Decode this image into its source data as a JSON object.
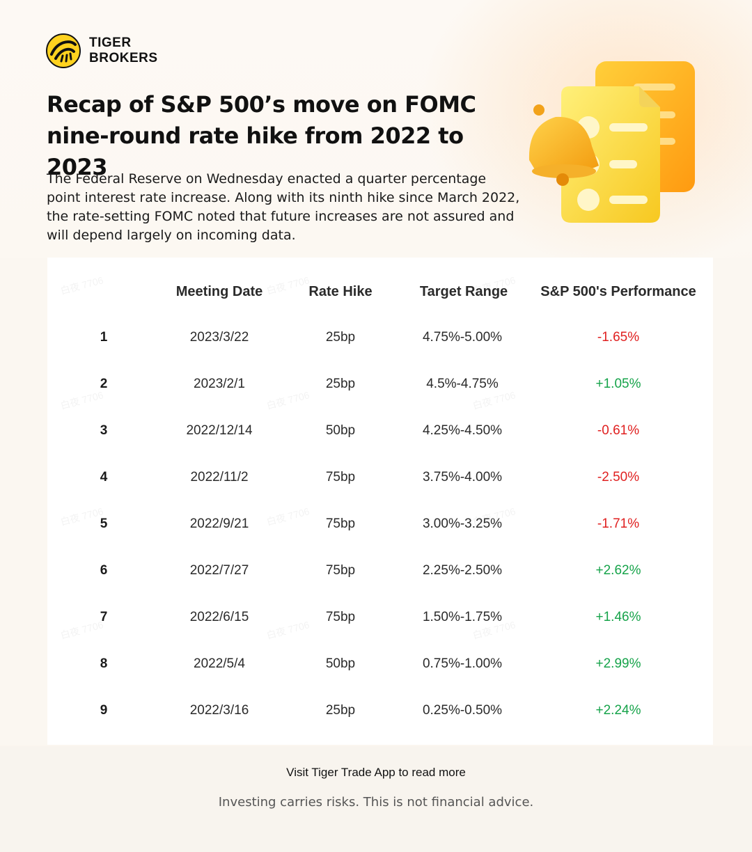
{
  "brand": {
    "line1": "TIGER",
    "line2": "BROKERS",
    "colors": {
      "accent": "#ffd21f",
      "negative": "#e02020",
      "positive": "#16a34a"
    }
  },
  "header": {
    "title_line1": "Recap of S&P 500’s move on FOMC",
    "title_line2": "nine-round rate hike from 2022 to 2023",
    "intro": "The Federal Reserve on Wednesday enacted a quarter percentage point interest rate increase. Along with its ninth hike since March 2022, the rate-setting FOMC noted that future increases are not assured and will depend largely on incoming data."
  },
  "illustration": {
    "icons": [
      "bell-icon",
      "document-list-icon"
    ]
  },
  "table": {
    "columns": [
      "",
      "Meeting Date",
      "Rate Hike",
      "Target Range",
      "S&P 500's Performance"
    ],
    "rows": [
      {
        "idx": "1",
        "date": "2023/3/22",
        "hike": "25bp",
        "range": "4.75%-5.00%",
        "perf": "-1.65%",
        "dir": "neg"
      },
      {
        "idx": "2",
        "date": "2023/2/1",
        "hike": "25bp",
        "range": "4.5%-4.75%",
        "perf": "+1.05%",
        "dir": "pos"
      },
      {
        "idx": "3",
        "date": "2022/12/14",
        "hike": "50bp",
        "range": "4.25%-4.50%",
        "perf": "-0.61%",
        "dir": "neg"
      },
      {
        "idx": "4",
        "date": "2022/11/2",
        "hike": "75bp",
        "range": "3.75%-4.00%",
        "perf": "-2.50%",
        "dir": "neg"
      },
      {
        "idx": "5",
        "date": "2022/9/21",
        "hike": "75bp",
        "range": "3.00%-3.25%",
        "perf": "-1.71%",
        "dir": "neg"
      },
      {
        "idx": "6",
        "date": "2022/7/27",
        "hike": "75bp",
        "range": "2.25%-2.50%",
        "perf": "+2.62%",
        "dir": "pos"
      },
      {
        "idx": "7",
        "date": "2022/6/15",
        "hike": "75bp",
        "range": "1.50%-1.75%",
        "perf": "+1.46%",
        "dir": "pos"
      },
      {
        "idx": "8",
        "date": "2022/5/4",
        "hike": "50bp",
        "range": "0.75%-1.00%",
        "perf": "+2.99%",
        "dir": "pos"
      },
      {
        "idx": "9",
        "date": "2022/3/16",
        "hike": "25bp",
        "range": "0.25%-0.50%",
        "perf": "+2.24%",
        "dir": "pos"
      }
    ]
  },
  "watermark": "白夜 7706",
  "footer": {
    "cta": "Visit Tiger Trade App to read more",
    "disclaimer": "Investing carries risks. This is not financial advice."
  }
}
